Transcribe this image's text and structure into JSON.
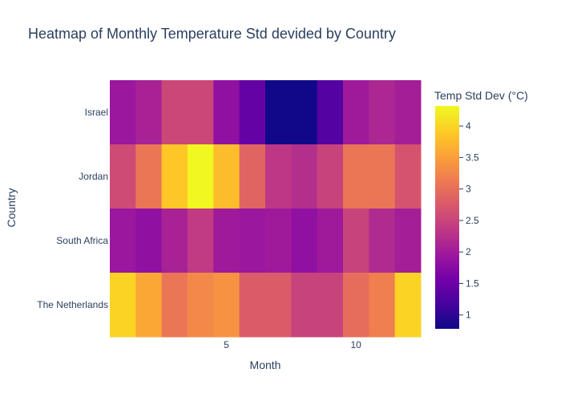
{
  "chart_data": {
    "type": "heatmap",
    "title": "Heatmap of Monthly Temperature Std devided by Country",
    "xlabel": "Month",
    "ylabel": "Country",
    "x": [
      1,
      2,
      3,
      4,
      5,
      6,
      7,
      8,
      9,
      10,
      11,
      12
    ],
    "x_ticks": [
      5,
      10
    ],
    "y": [
      "Israel",
      "Jordan",
      "South Africa",
      "The Netherlands"
    ],
    "z": [
      [
        1.95,
        2.1,
        2.55,
        2.55,
        1.85,
        1.45,
        0.8,
        0.8,
        1.3,
        2.0,
        2.15,
        2.05
      ],
      [
        2.6,
        3.1,
        3.9,
        4.3,
        3.8,
        2.9,
        2.35,
        2.25,
        2.5,
        3.1,
        3.1,
        2.7
      ],
      [
        1.95,
        1.85,
        2.1,
        2.4,
        2.0,
        1.95,
        2.0,
        1.85,
        2.0,
        2.5,
        2.2,
        2.05
      ],
      [
        4.0,
        3.6,
        3.1,
        3.3,
        3.4,
        2.8,
        2.8,
        2.5,
        2.5,
        3.0,
        3.2,
        4.0
      ]
    ],
    "colorbar": {
      "title": "Temp Std Dev (°C)",
      "range": [
        0.78,
        4.32
      ],
      "ticks": [
        "1",
        "1.5",
        "2",
        "2.5",
        "3",
        "3.5",
        "4"
      ]
    },
    "colorscale": "plasma"
  }
}
